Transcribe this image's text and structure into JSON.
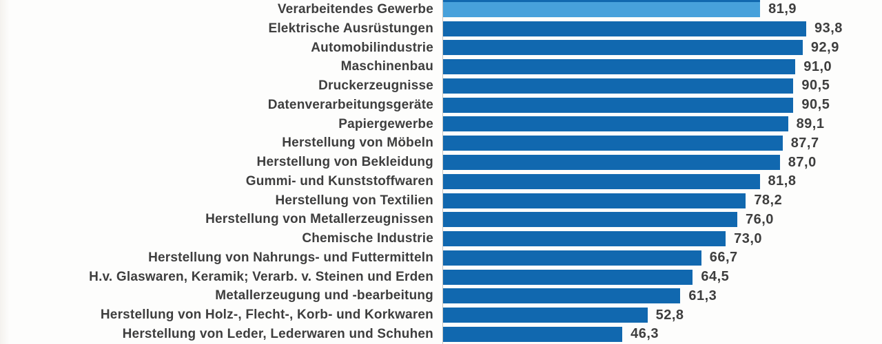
{
  "chart_data": {
    "type": "bar",
    "orientation": "horizontal",
    "title": "",
    "xlabel": "",
    "ylabel": "",
    "xlim": [
      0,
      100
    ],
    "grid": false,
    "legend": false,
    "value_format": "german-decimal-comma",
    "categories": [
      "Verarbeitendes Gewerbe",
      "Elektrische Ausrüstungen",
      "Automobilindustrie",
      "Maschinenbau",
      "Druckerzeugnisse",
      "Datenverarbeitungsgeräte",
      "Papiergewerbe",
      "Herstellung von Möbeln",
      "Herstellung von Bekleidung",
      "Gummi- und Kunststoffwaren",
      "Herstellung von Textilien",
      "Herstellung von Metallerzeugnissen",
      "Chemische Industrie",
      "Herstellung von Nahrungs- und Futtermitteln",
      "H.v. Glaswaren, Keramik; Verarb. v. Steinen und Erden",
      "Metallerzeugung und -bearbeitung",
      "Herstellung von Holz-, Flecht-, Korb- und Korkwaren",
      "Herstellung von Leder, Lederwaren und Schuhen"
    ],
    "values": [
      81.9,
      93.8,
      92.9,
      91.0,
      90.5,
      90.5,
      89.1,
      87.7,
      87.0,
      81.8,
      78.2,
      76.0,
      73.0,
      66.7,
      64.5,
      61.3,
      52.8,
      46.3
    ],
    "value_labels": [
      "81,9",
      "93,8",
      "92,9",
      "91,0",
      "90,5",
      "90,5",
      "89,1",
      "87,7",
      "87,0",
      "81,8",
      "78,2",
      "76,0",
      "73,0",
      "66,7",
      "64,5",
      "61,3",
      "52,8",
      "46,3"
    ],
    "highlight_index": 0,
    "colors": {
      "bar": "#1168af",
      "highlight_bar": "#47a1db",
      "label_text": "#3e3e3e",
      "value_text": "#3e3e3e",
      "axis_line": "#c6c4c0",
      "background": "#fdfdfc"
    }
  }
}
